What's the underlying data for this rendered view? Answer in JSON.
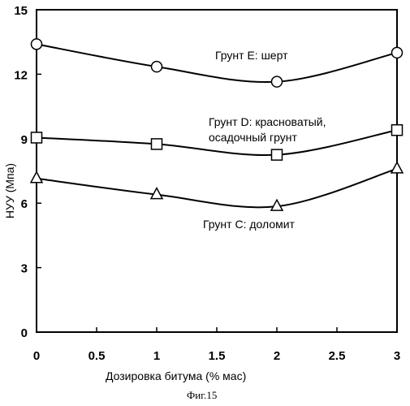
{
  "chart_data": {
    "type": "line",
    "xlabel": "Дозировка битума (% мас)",
    "ylabel": "НУУ (Мпа)",
    "xlim": [
      0,
      3
    ],
    "ylim": [
      0,
      15
    ],
    "xticks": [
      "0",
      "0.5",
      "1",
      "1.5",
      "2",
      "2.5",
      "3"
    ],
    "yticks": [
      "0",
      "3",
      "6",
      "9",
      "12",
      "15"
    ],
    "grid": false,
    "legend": "none",
    "series": [
      {
        "name": "Грунт Е: шерт",
        "marker": "circle",
        "x": [
          0,
          1,
          2,
          3
        ],
        "y": [
          13.4,
          12.35,
          11.65,
          13.0
        ]
      },
      {
        "name": "Грунт D: красноватый, осадочный грунт",
        "name_lines": [
          "Грунт D: красноватый,",
          "осадочный грунт"
        ],
        "marker": "square",
        "x": [
          0,
          1,
          2,
          3
        ],
        "y": [
          9.05,
          8.75,
          8.25,
          9.4
        ]
      },
      {
        "name": "Грунт С: доломит",
        "marker": "triangle",
        "x": [
          0,
          1,
          2,
          3
        ],
        "y": [
          7.15,
          6.4,
          5.85,
          7.6
        ]
      }
    ]
  },
  "caption": "Фиг.15"
}
